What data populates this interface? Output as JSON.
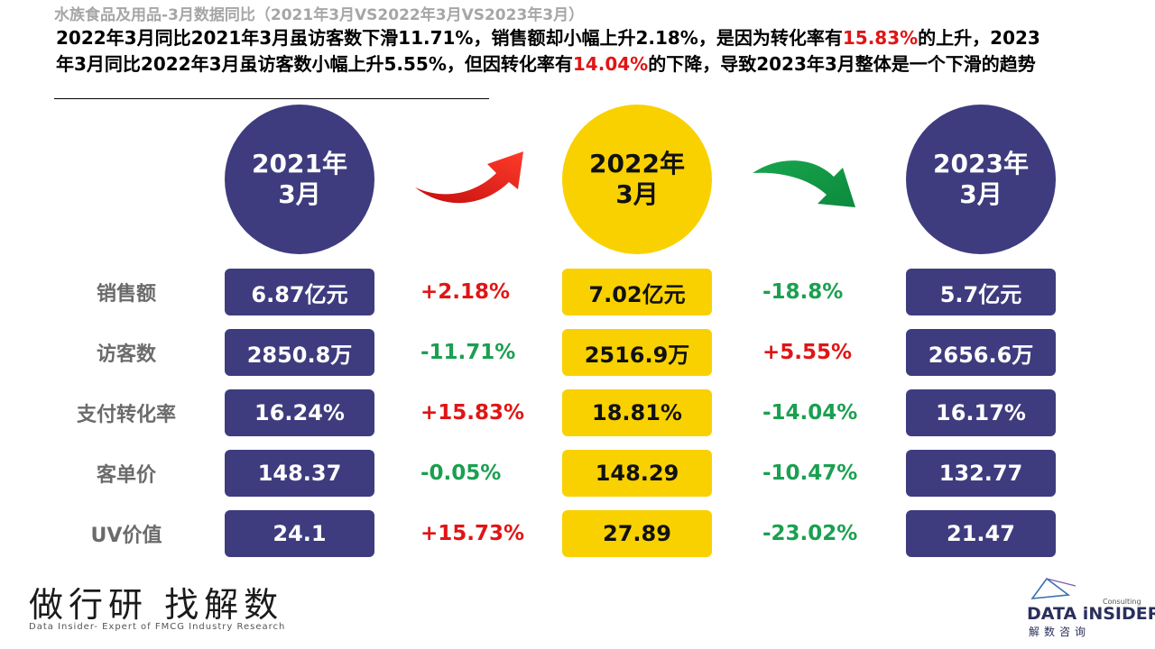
{
  "header": {
    "subtitle": "水族食品及用品-3月数据同比（2021年3月VS2022年3月VS2023年3月）",
    "summary_parts": [
      {
        "text": "2022年3月同比2021年3月虽访客数下滑11.71%，销售额却小幅上升2.18%，是因为转化率有",
        "highlight": false
      },
      {
        "text": "15.83%",
        "highlight": true
      },
      {
        "text": "的上升，2023年3月同比2022年3月虽访客数小幅上升5.55%，但因转化率有",
        "highlight": false
      },
      {
        "text": "14.04%",
        "highlight": true
      },
      {
        "text": "的下降，导致2023年3月整体是一个下滑的趋势",
        "highlight": false
      }
    ]
  },
  "periods": [
    {
      "line1": "2021年",
      "line2": "3月"
    },
    {
      "line1": "2022年",
      "line2": "3月"
    },
    {
      "line1": "2023年",
      "line2": "3月"
    }
  ],
  "metrics": [
    {
      "label": "销售额",
      "v2021": "6.87亿元",
      "chg1": "+2.18%",
      "v2022": "7.02亿元",
      "chg2": "-18.8%",
      "v2023": "5.7亿元"
    },
    {
      "label": "访客数",
      "v2021": "2850.8万",
      "chg1": "-11.71%",
      "v2022": "2516.9万",
      "chg2": "+5.55%",
      "v2023": "2656.6万"
    },
    {
      "label": "支付转化率",
      "v2021": "16.24%",
      "chg1": "+15.83%",
      "v2022": "18.81%",
      "chg2": "-14.04%",
      "v2023": "16.17%"
    },
    {
      "label": "客单价",
      "v2021": "148.37",
      "chg1": "-0.05%",
      "v2022": "148.29",
      "chg2": "-10.47%",
      "v2023": "132.77"
    },
    {
      "label": "UV价值",
      "v2021": "24.1",
      "chg1": "+15.73%",
      "v2022": "27.89",
      "chg2": "-23.02%",
      "v2023": "21.47"
    }
  ],
  "arrows": {
    "first": "up-arrow-icon",
    "second": "down-arrow-icon"
  },
  "colors": {
    "navy": "#3e3c7e",
    "yellow": "#f9d100",
    "up": "#e01515",
    "down": "#1aa050"
  },
  "footer": {
    "slogan": "做行研 找解数",
    "tagline": "Data Insider- Expert of FMCG Industry Research",
    "logo_name": "DATA iNSIDER",
    "logo_cn": "解数咨询",
    "logo_consulting": "Consulting"
  }
}
